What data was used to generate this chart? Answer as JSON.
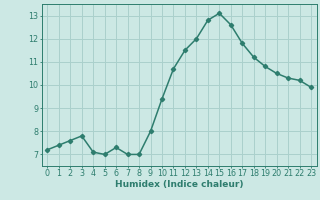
{
  "x": [
    0,
    1,
    2,
    3,
    4,
    5,
    6,
    7,
    8,
    9,
    10,
    11,
    12,
    13,
    14,
    15,
    16,
    17,
    18,
    19,
    20,
    21,
    22,
    23
  ],
  "y": [
    7.2,
    7.4,
    7.6,
    7.8,
    7.1,
    7.0,
    7.3,
    7.0,
    7.0,
    8.0,
    9.4,
    10.7,
    11.5,
    12.0,
    12.8,
    13.1,
    12.6,
    11.8,
    11.2,
    10.8,
    10.5,
    10.3,
    10.2,
    9.9
  ],
  "line_color": "#2e7d6e",
  "marker": "D",
  "marker_size": 2.2,
  "bg_color": "#cce8e4",
  "grid_color": "#aad0cc",
  "xlabel": "Humidex (Indice chaleur)",
  "ylim": [
    6.5,
    13.5
  ],
  "xlim": [
    -0.5,
    23.5
  ],
  "yticks": [
    7,
    8,
    9,
    10,
    11,
    12,
    13
  ],
  "xticks": [
    0,
    1,
    2,
    3,
    4,
    5,
    6,
    7,
    8,
    9,
    10,
    11,
    12,
    13,
    14,
    15,
    16,
    17,
    18,
    19,
    20,
    21,
    22,
    23
  ],
  "tick_color": "#2e7d6e",
  "label_fontsize": 6.5,
  "tick_fontsize": 5.8,
  "linewidth": 1.1
}
